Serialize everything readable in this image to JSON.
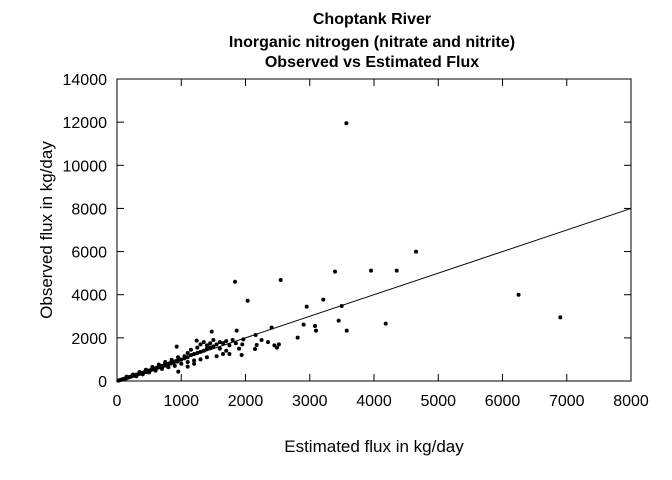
{
  "chart_data": {
    "type": "scatter",
    "title": [
      "Choptank River",
      "Inorganic nitrogen (nitrate and nitrite)",
      "Observed vs Estimated Flux"
    ],
    "xlabel": "Estimated flux in kg/day",
    "ylabel": "Observed flux in kg/day",
    "xlim": [
      0,
      8000
    ],
    "ylim": [
      0,
      14000
    ],
    "xticks": [
      "0",
      "1000",
      "2000",
      "3000",
      "4000",
      "5000",
      "6000",
      "7000",
      "8000"
    ],
    "yticks": [
      "0",
      "2000",
      "4000",
      "6000",
      "8000",
      "10000",
      "12000",
      "14000"
    ],
    "grid": false,
    "reference_line": {
      "slope": 1,
      "intercept": 0
    },
    "point_color": "#000000",
    "points": [
      [
        20,
        15
      ],
      [
        40,
        35
      ],
      [
        60,
        50
      ],
      [
        80,
        70
      ],
      [
        100,
        95
      ],
      [
        120,
        110
      ],
      [
        140,
        120
      ],
      [
        160,
        150
      ],
      [
        180,
        170
      ],
      [
        200,
        190
      ],
      [
        220,
        200
      ],
      [
        240,
        230
      ],
      [
        260,
        250
      ],
      [
        280,
        260
      ],
      [
        300,
        290
      ],
      [
        320,
        300
      ],
      [
        340,
        330
      ],
      [
        360,
        340
      ],
      [
        380,
        360
      ],
      [
        400,
        390
      ],
      [
        420,
        400
      ],
      [
        440,
        430
      ],
      [
        460,
        420
      ],
      [
        480,
        470
      ],
      [
        500,
        480
      ],
      [
        520,
        500
      ],
      [
        540,
        530
      ],
      [
        560,
        540
      ],
      [
        580,
        560
      ],
      [
        600,
        590
      ],
      [
        620,
        600
      ],
      [
        640,
        630
      ],
      [
        660,
        640
      ],
      [
        680,
        660
      ],
      [
        700,
        700
      ],
      [
        720,
        690
      ],
      [
        740,
        740
      ],
      [
        760,
        720
      ],
      [
        780,
        790
      ],
      [
        800,
        780
      ],
      [
        820,
        820
      ],
      [
        840,
        810
      ],
      [
        860,
        870
      ],
      [
        880,
        860
      ],
      [
        900,
        900
      ],
      [
        920,
        930
      ],
      [
        940,
        900
      ],
      [
        960,
        980
      ],
      [
        980,
        1000
      ],
      [
        1000,
        990
      ],
      [
        150,
        200
      ],
      [
        250,
        300
      ],
      [
        350,
        420
      ],
      [
        450,
        520
      ],
      [
        550,
        650
      ],
      [
        650,
        760
      ],
      [
        750,
        880
      ],
      [
        850,
        980
      ],
      [
        950,
        1100
      ],
      [
        1050,
        1150
      ],
      [
        300,
        220
      ],
      [
        400,
        310
      ],
      [
        500,
        400
      ],
      [
        600,
        480
      ],
      [
        700,
        560
      ],
      [
        800,
        640
      ],
      [
        900,
        700
      ],
      [
        1000,
        800
      ],
      [
        1100,
        880
      ],
      [
        1200,
        950
      ],
      [
        1050,
        1050
      ],
      [
        1100,
        1100
      ],
      [
        1150,
        1200
      ],
      [
        1200,
        1250
      ],
      [
        1250,
        1300
      ],
      [
        1300,
        1350
      ],
      [
        1350,
        1400
      ],
      [
        1400,
        1500
      ],
      [
        1450,
        1550
      ],
      [
        1500,
        1600
      ],
      [
        1100,
        1300
      ],
      [
        1150,
        1450
      ],
      [
        1250,
        1550
      ],
      [
        1300,
        1700
      ],
      [
        1350,
        1800
      ],
      [
        1400,
        1650
      ],
      [
        1450,
        1750
      ],
      [
        1500,
        1900
      ],
      [
        1550,
        1700
      ],
      [
        1600,
        1800
      ],
      [
        1650,
        1750
      ],
      [
        1700,
        1850
      ],
      [
        1750,
        1650
      ],
      [
        1800,
        1900
      ],
      [
        1850,
        1750
      ],
      [
        1900,
        1500
      ],
      [
        1950,
        1700
      ],
      [
        1600,
        1500
      ],
      [
        1700,
        1400
      ],
      [
        1650,
        1250
      ],
      [
        1240,
        1870
      ],
      [
        1474,
        2287
      ],
      [
        929,
        1591
      ],
      [
        954,
        432
      ],
      [
        1100,
        664
      ],
      [
        1200,
        800
      ],
      [
        1300,
        1000
      ],
      [
        1400,
        1100
      ],
      [
        1550,
        1150
      ],
      [
        1750,
        1250
      ],
      [
        1863,
        2333
      ],
      [
        1966,
        1932
      ],
      [
        1940,
        1205
      ],
      [
        2148,
        1483
      ],
      [
        2174,
        1669
      ],
      [
        2158,
        2133
      ],
      [
        2250,
        1900
      ],
      [
        2350,
        1800
      ],
      [
        2450,
        1650
      ],
      [
        2490,
        1550
      ],
      [
        2520,
        1700
      ],
      [
        2407,
        2472
      ],
      [
        2812,
        2009
      ],
      [
        2905,
        2611
      ],
      [
        3097,
        2333
      ],
      [
        3082,
        2550
      ],
      [
        3450,
        2797
      ],
      [
        3575,
        2333
      ],
      [
        3497,
        3477
      ],
      [
        4182,
        2657
      ],
      [
        1837,
        4603
      ],
      [
        2547,
        4683
      ],
      [
        2034,
        3723
      ],
      [
        2952,
        3445
      ],
      [
        3211,
        3770
      ],
      [
        3393,
        5068
      ],
      [
        3953,
        5114
      ],
      [
        4353,
        5114
      ],
      [
        4654,
        5995
      ],
      [
        3570,
        11950
      ],
      [
        6250,
        4000
      ],
      [
        6900,
        2950
      ]
    ]
  }
}
